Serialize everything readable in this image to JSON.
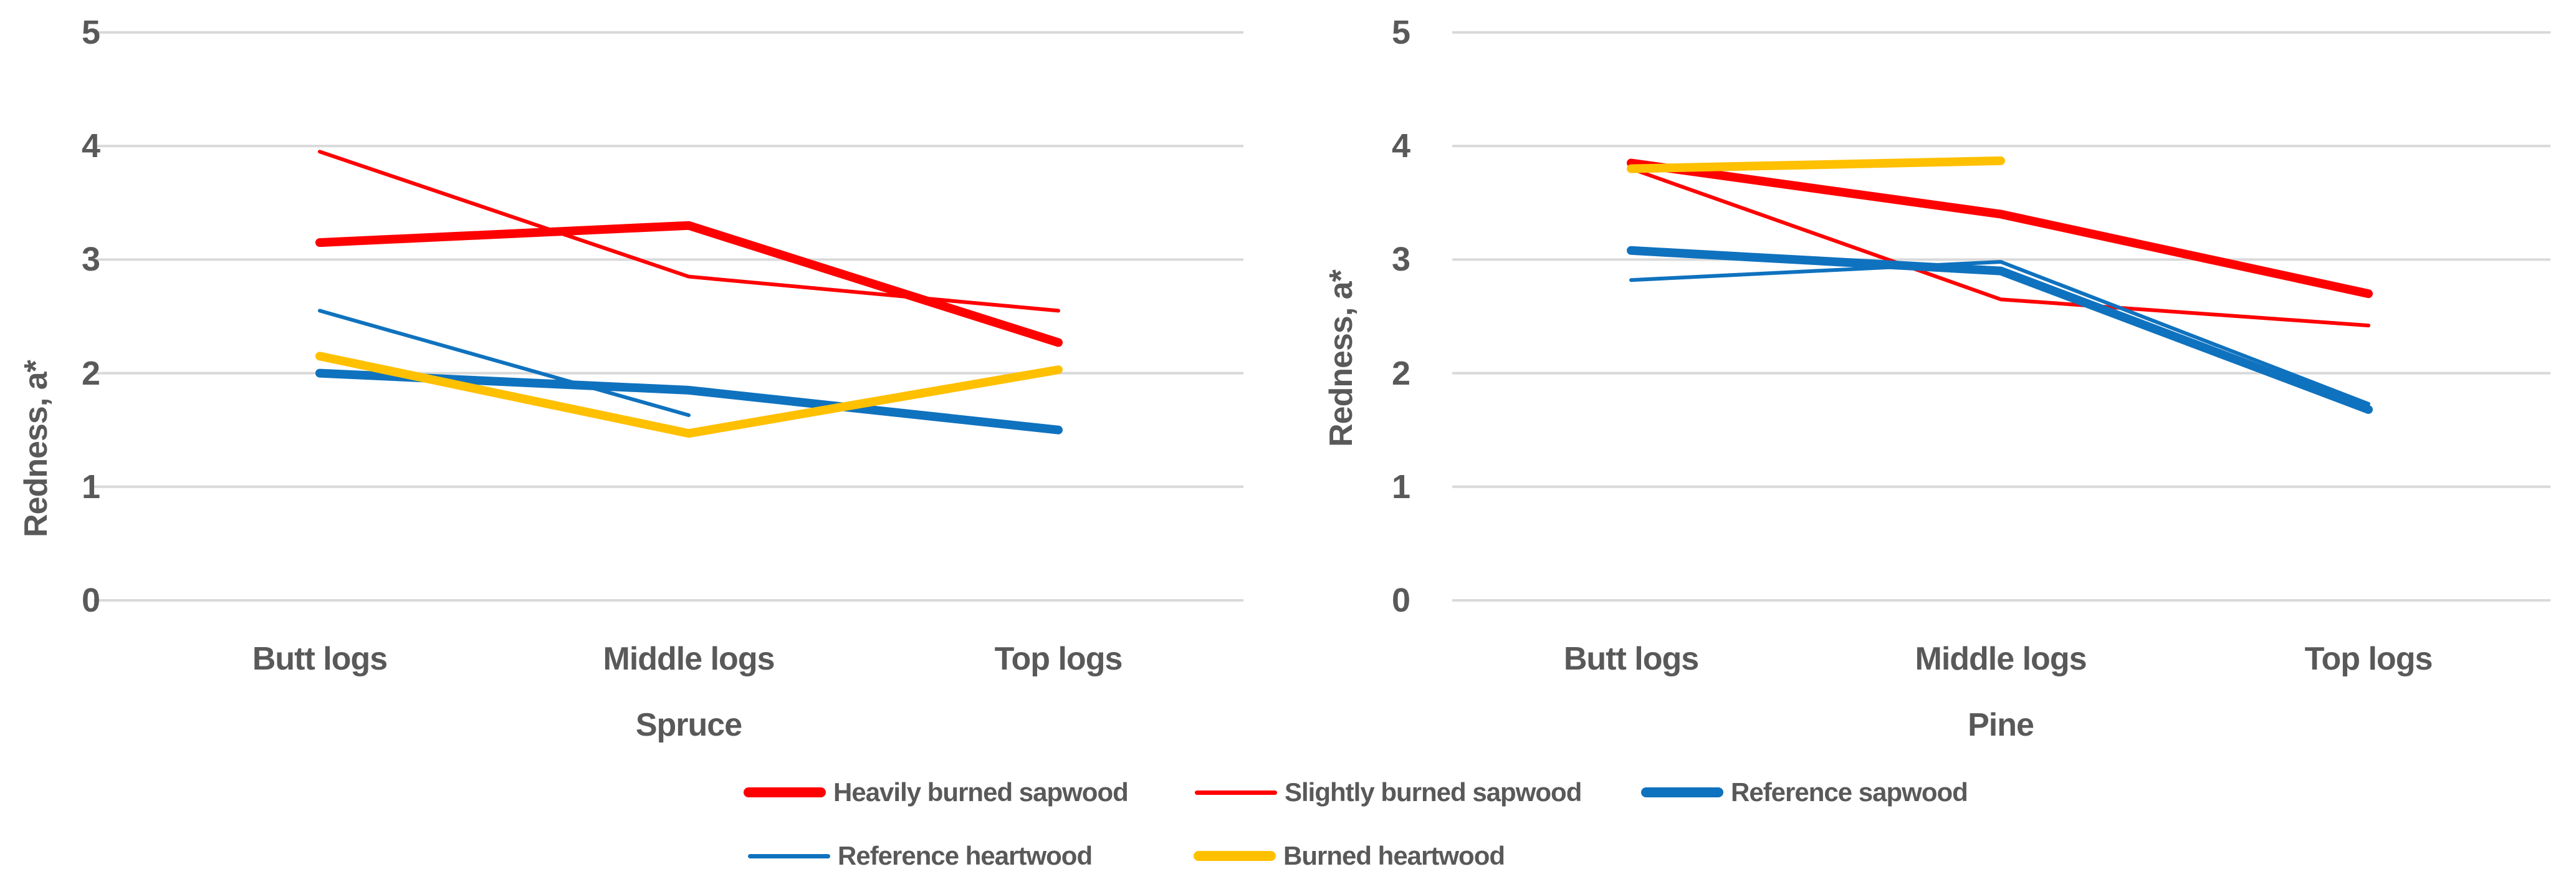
{
  "figure": {
    "background": "#FFFFFF"
  },
  "colors": {
    "axis_text": "#595959",
    "gridline": "#D9D9D9",
    "red": "#FF0000",
    "blue": "#0F72BE",
    "gold": "#FFC000"
  },
  "chart_data": [
    {
      "type": "line",
      "xlabel": "Spruce",
      "ylabel": "Redness, a*",
      "ylim": [
        0,
        5
      ],
      "grid": true,
      "legend_position": "bottom",
      "yticks": [
        "5",
        "4",
        "3",
        "2",
        "1",
        "0"
      ],
      "categories": [
        "Butt logs",
        "Middle logs",
        "Top logs"
      ],
      "series": [
        {
          "name": "Heavily burned sapwood",
          "color": "#FF0000",
          "thickness": "thick",
          "values": [
            3.15,
            3.3,
            2.27
          ]
        },
        {
          "name": "Slightly burned sapwood",
          "color": "#FF0000",
          "thickness": "thin",
          "values": [
            3.95,
            2.85,
            2.55
          ]
        },
        {
          "name": "Reference sapwood",
          "color": "#0F72BE",
          "thickness": "thick",
          "values": [
            2.0,
            1.85,
            1.5
          ]
        },
        {
          "name": "Reference heartwood",
          "color": "#0F72BE",
          "thickness": "thin",
          "values": [
            2.55,
            1.63,
            null
          ]
        },
        {
          "name": "Burned heartwood",
          "color": "#FFC000",
          "thickness": "thick",
          "values": [
            2.15,
            1.47,
            2.03
          ]
        }
      ]
    },
    {
      "type": "line",
      "xlabel": "Pine",
      "ylabel": "Redness, a*",
      "ylim": [
        0,
        5
      ],
      "grid": true,
      "legend_position": "bottom",
      "yticks": [
        "5",
        "4",
        "3",
        "2",
        "1",
        "0"
      ],
      "categories": [
        "Butt logs",
        "Middle logs",
        "Top logs"
      ],
      "series": [
        {
          "name": "Heavily burned sapwood",
          "color": "#FF0000",
          "thickness": "thick",
          "values": [
            3.85,
            3.4,
            2.7
          ]
        },
        {
          "name": "Slightly burned sapwood",
          "color": "#FF0000",
          "thickness": "thin",
          "values": [
            3.8,
            2.65,
            2.42
          ]
        },
        {
          "name": "Reference sapwood",
          "color": "#0F72BE",
          "thickness": "thick",
          "values": [
            3.08,
            2.9,
            1.68
          ]
        },
        {
          "name": "Reference heartwood",
          "color": "#0F72BE",
          "thickness": "thin",
          "values": [
            2.82,
            2.98,
            1.73
          ]
        },
        {
          "name": "Burned heartwood",
          "color": "#FFC000",
          "thickness": "thick",
          "values": [
            3.8,
            3.87,
            null
          ]
        }
      ]
    }
  ]
}
